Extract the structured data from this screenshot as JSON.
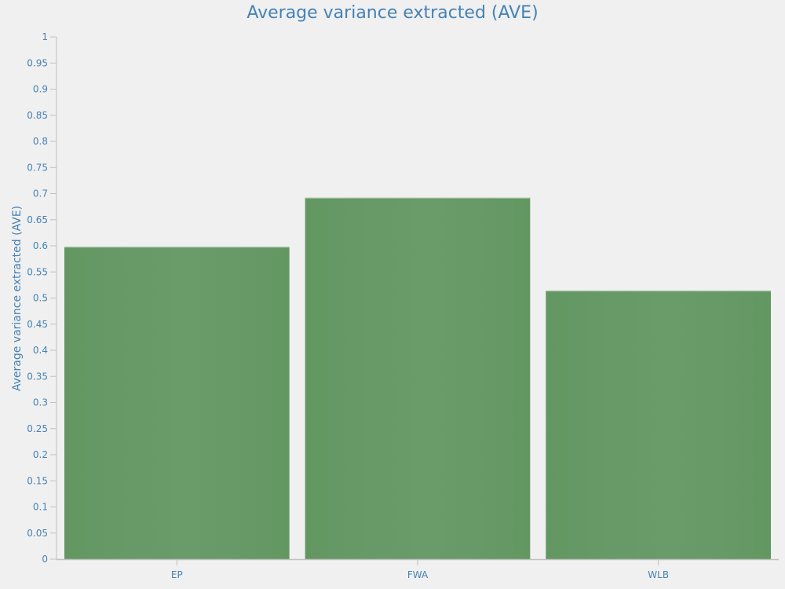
{
  "chart_data": {
    "type": "bar",
    "title": "Average variance extracted (AVE)",
    "xlabel": "",
    "ylabel": "Average variance extracted (AVE)",
    "categories": [
      "EP",
      "FWA",
      "WLB"
    ],
    "values": [
      0.598,
      0.692,
      0.514
    ],
    "ylim": [
      0,
      1
    ],
    "yticks": [
      "0",
      "0.05",
      "0.1",
      "0.15",
      "0.2",
      "0.25",
      "0.3",
      "0.35",
      "0.4",
      "0.45",
      "0.5",
      "0.55",
      "0.6",
      "0.65",
      "0.7",
      "0.75",
      "0.8",
      "0.85",
      "0.9",
      "0.95",
      "1"
    ],
    "grid": false,
    "legend": null,
    "colors": {
      "bar": "#639762",
      "bar_highlight": "#6a9c6a",
      "text": "#4682b4",
      "axis": "#c0c0c0"
    }
  }
}
